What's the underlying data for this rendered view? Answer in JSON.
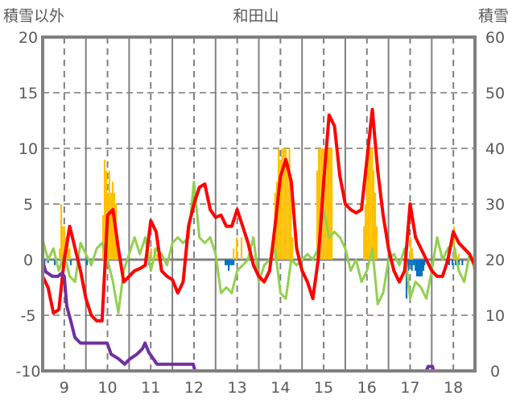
{
  "chart_data": {
    "type": "bar+line",
    "title": "和田山",
    "ylabel_left": "積雪以外",
    "ylabel_right": "積雪",
    "ylim_left": [
      -10,
      20
    ],
    "ylim_right": [
      0,
      60
    ],
    "yticks_left": [
      "20",
      "15",
      "10",
      "5",
      "0",
      "-5",
      "-10"
    ],
    "yticks_right": [
      "60",
      "50",
      "40",
      "30",
      "20",
      "10",
      "0"
    ],
    "x_unit": "hours since day 9 00:00",
    "xlim": [
      0,
      240
    ],
    "x_tick_labels": [
      "9",
      "10",
      "11",
      "12",
      "13",
      "14",
      "15",
      "16",
      "17",
      "18"
    ],
    "grid": true,
    "colors": {
      "temperature": "#FF0000",
      "green": "#92D050",
      "precip": "#FFC000",
      "negative": "#0070C0",
      "snow": "#7030A0",
      "frame": "#808080"
    },
    "series": [
      {
        "name": "red-line",
        "axis": "left",
        "step_hours": 3,
        "values": [
          -1.5,
          -2.5,
          -4.8,
          -4.5,
          0,
          3,
          1,
          -1,
          -3.5,
          -5,
          -5.5,
          -5.5,
          4,
          4.5,
          1,
          -2,
          -1.5,
          -1,
          -0.8,
          -0.5,
          3.5,
          2.5,
          -1,
          -1.5,
          -1.8,
          -3,
          -2,
          3,
          5,
          6.5,
          6.8,
          4.5,
          3.8,
          4,
          3,
          3,
          4.5,
          3,
          1.5,
          -0.5,
          -1.5,
          -2,
          -1,
          3,
          7.5,
          9,
          7,
          1,
          -1,
          -2,
          -3.5,
          0,
          7,
          13,
          12,
          7.5,
          5,
          4.5,
          4.2,
          4.5,
          9,
          13.5,
          8,
          4,
          1,
          -1,
          -2,
          -1,
          5,
          2,
          1,
          0,
          -1,
          -1.5,
          -1.5,
          0,
          2.5,
          1.5,
          1,
          0.5,
          -0.5
        ]
      },
      {
        "name": "green-line",
        "axis": "left",
        "step_hours": 3,
        "values": [
          1.8,
          0,
          1,
          -1,
          0.5,
          -1.5,
          -2,
          1.5,
          0.5,
          -0.5,
          1,
          1.5,
          0,
          -2,
          -4.8,
          -1,
          0.5,
          2,
          0.5,
          2,
          -1,
          1,
          0.5,
          -0.5,
          1.5,
          2,
          1.5,
          2,
          7,
          2,
          1.5,
          2,
          0.5,
          -3,
          -2.5,
          -3,
          -1,
          -0.5,
          0,
          2,
          -2,
          -0.5,
          0,
          1,
          -3,
          -3.5,
          0,
          -0.5,
          0,
          0.5,
          0,
          1,
          4.5,
          2,
          2.5,
          2,
          1,
          -1,
          0,
          -2,
          -1,
          1,
          -4,
          -3,
          0,
          0.5,
          -0.5,
          1,
          -3.5,
          -2,
          -2.5,
          -3.5,
          -1,
          2,
          0,
          1,
          1.5,
          -1,
          -2,
          0.5,
          -1
        ]
      },
      {
        "name": "orange-bars",
        "axis": "left",
        "points": [
          [
            9.4,
            1
          ],
          [
            10.3,
            5
          ],
          [
            11,
            3
          ],
          [
            12,
            3
          ],
          [
            13,
            2
          ],
          [
            14,
            1.5
          ],
          [
            15,
            1
          ],
          [
            33.5,
            4
          ],
          [
            34.4,
            9
          ],
          [
            35.3,
            8
          ],
          [
            36.2,
            6
          ],
          [
            37,
            8
          ],
          [
            38,
            6
          ],
          [
            38.9,
            7
          ],
          [
            39.8,
            6
          ],
          [
            40.7,
            5
          ],
          [
            41.6,
            2
          ],
          [
            60.3,
            1
          ],
          [
            62,
            1
          ],
          [
            63.5,
            0.5
          ],
          [
            106,
            1
          ],
          [
            107.7,
            2
          ],
          [
            110.4,
            2
          ],
          [
            129,
            6
          ],
          [
            130,
            7
          ],
          [
            131,
            10
          ],
          [
            132,
            9
          ],
          [
            133,
            10
          ],
          [
            134,
            10
          ],
          [
            135,
            10
          ],
          [
            136,
            8
          ],
          [
            137,
            10
          ],
          [
            137.8,
            6
          ],
          [
            138.7,
            2
          ],
          [
            152.4,
            8
          ],
          [
            153.3,
            10
          ],
          [
            154,
            10
          ],
          [
            155,
            10
          ],
          [
            156,
            10
          ],
          [
            157,
            10
          ],
          [
            158,
            10
          ],
          [
            158.7,
            10
          ],
          [
            159.6,
            10
          ],
          [
            160.5,
            10
          ],
          [
            178.4,
            3
          ],
          [
            179.2,
            5
          ],
          [
            180,
            10
          ],
          [
            181,
            10
          ],
          [
            182,
            10
          ],
          [
            183,
            10
          ],
          [
            183.7,
            8
          ],
          [
            184.6,
            6
          ],
          [
            185.5,
            3
          ],
          [
            204.3,
            2
          ],
          [
            205.2,
            1
          ],
          [
            228.4,
            3
          ],
          [
            229.3,
            1
          ],
          [
            231,
            0.5
          ]
        ]
      },
      {
        "name": "blue-bars",
        "axis": "left",
        "points": [
          [
            0,
            -0.5
          ],
          [
            1,
            -0.7
          ],
          [
            3,
            -0.3
          ],
          [
            6.7,
            -0.5
          ],
          [
            15.6,
            -0.5
          ],
          [
            24.6,
            -0.5
          ],
          [
            59,
            -0.5
          ],
          [
            101.5,
            -0.5
          ],
          [
            102.4,
            -0.5
          ],
          [
            103.3,
            -1
          ],
          [
            104,
            -0.5
          ],
          [
            105,
            -0.5
          ],
          [
            106,
            -0.5
          ],
          [
            202,
            -3.5
          ],
          [
            203,
            -1
          ],
          [
            204,
            -0.5
          ],
          [
            205,
            -1
          ],
          [
            206,
            -0.5
          ],
          [
            207,
            -1
          ],
          [
            207.8,
            -1.5
          ],
          [
            208.7,
            -1.5
          ],
          [
            209.6,
            -1.5
          ],
          [
            210.5,
            -1.5
          ],
          [
            211.4,
            -1
          ],
          [
            212,
            -0.5
          ],
          [
            224.4,
            -0.5
          ],
          [
            225.7,
            -0.5
          ],
          [
            227.5,
            -0.5
          ],
          [
            229.3,
            -0.5
          ],
          [
            231,
            -0.5
          ],
          [
            233,
            -0.5
          ]
        ]
      },
      {
        "name": "snow-depth",
        "axis": "right",
        "points": [
          [
            0,
            19.5
          ],
          [
            1.8,
            17.8
          ],
          [
            5.4,
            17
          ],
          [
            8.5,
            17
          ],
          [
            10.3,
            17.5
          ],
          [
            12,
            17
          ],
          [
            13.4,
            11.6
          ],
          [
            15.6,
            9
          ],
          [
            17.9,
            6
          ],
          [
            21,
            5
          ],
          [
            35.8,
            5
          ],
          [
            38,
            3
          ],
          [
            42,
            2.2
          ],
          [
            45.6,
            1.2
          ],
          [
            47.8,
            2
          ],
          [
            52.3,
            3
          ],
          [
            55.4,
            4
          ],
          [
            56.8,
            5
          ],
          [
            59,
            3.3
          ],
          [
            63.5,
            1.2
          ],
          [
            83.6,
            1.2
          ],
          [
            84.5,
            0
          ],
          [
            213,
            0
          ],
          [
            214,
            0.8
          ],
          [
            216.4,
            0.8
          ],
          [
            217,
            0
          ],
          [
            240,
            0
          ]
        ]
      }
    ]
  }
}
